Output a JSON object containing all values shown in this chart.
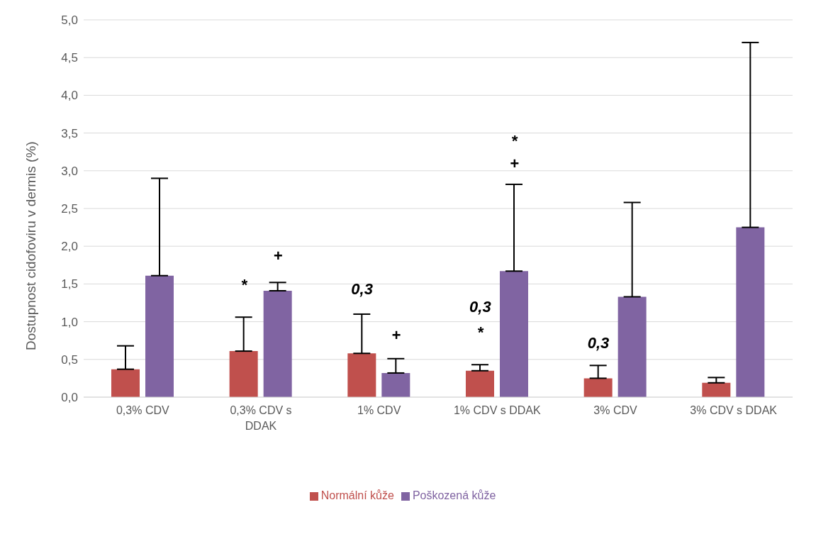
{
  "chart_data": {
    "type": "bar",
    "ylabel": "Dostupnost cidofoviru v dermis  (%)",
    "categories": [
      "0,3% CDV",
      "0,3% CDV s DDAK",
      "1% CDV",
      "1% CDV s DDAK",
      "3% CDV",
      "3% CDV s DDAK"
    ],
    "series": [
      {
        "name": "Normální kůže",
        "color": "#c0504d",
        "values": [
          0.37,
          0.61,
          0.58,
          0.35,
          0.25,
          0.19
        ],
        "errors": [
          [
            0.37,
            0.68
          ],
          [
            0.61,
            1.06
          ],
          [
            0.58,
            1.1
          ],
          [
            0.35,
            0.43
          ],
          [
            0.25,
            0.42
          ],
          [
            0.19,
            0.26
          ]
        ]
      },
      {
        "name": "Poškozená kůže",
        "color": "#8064a2",
        "values": [
          1.61,
          1.41,
          0.32,
          1.67,
          1.33,
          2.25
        ],
        "errors": [
          [
            1.61,
            2.9
          ],
          [
            1.41,
            1.52
          ],
          [
            0.32,
            0.51
          ],
          [
            1.67,
            2.82
          ],
          [
            1.33,
            2.58
          ],
          [
            2.25,
            4.7
          ]
        ]
      }
    ],
    "ylim": [
      0,
      5
    ],
    "yticks": [
      {
        "value": 0,
        "label": "0,0"
      },
      {
        "value": 0.5,
        "label": "0,5"
      },
      {
        "value": 1,
        "label": "1,0"
      },
      {
        "value": 1.5,
        "label": "1,5"
      },
      {
        "value": 2,
        "label": "2,0"
      },
      {
        "value": 2.5,
        "label": "2,5"
      },
      {
        "value": 3,
        "label": "3,0"
      },
      {
        "value": 3.5,
        "label": "3,5"
      },
      {
        "value": 4,
        "label": "4,0"
      },
      {
        "value": 4.5,
        "label": "4,5"
      },
      {
        "value": 5,
        "label": "5,0"
      }
    ],
    "grid": "y",
    "legend": "bottom",
    "annotations": [
      "*",
      "+",
      "0,3",
      "+",
      "0,3",
      "*",
      "*",
      "+",
      "0,3"
    ]
  }
}
